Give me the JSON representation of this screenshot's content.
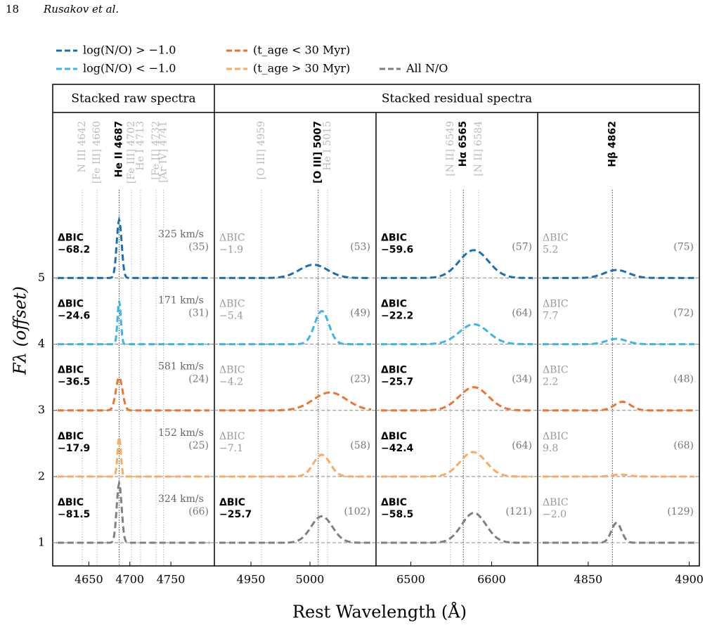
{
  "header": {
    "page_number": "18",
    "authors": "Rusakov et al."
  },
  "chart_data": {
    "type": "spectra-grid",
    "series": [
      {
        "name": "log(N/O) > −1.0",
        "color": "#1a6fb5"
      },
      {
        "name": "log(N/O) < −1.0",
        "color": "#3cb5ea"
      },
      {
        "name": "(t_age < 30 Myr)",
        "color": "#ec7534"
      },
      {
        "name": "(t_age > 30 Myr)",
        "color": "#fbaa5f"
      },
      {
        "name": "All N/O",
        "color": "#808080"
      }
    ],
    "group_titles": [
      "Stacked raw spectra",
      "Stacked residual spectra"
    ],
    "ylabel": "Fλ (offset)",
    "xlabel": "Rest Wavelength (Å)",
    "bic_label": "ΔBIC",
    "ylim": [
      0.65,
      7.5
    ],
    "yticks": [
      1,
      2,
      3,
      4,
      5
    ],
    "panels": [
      {
        "xlim": [
          4606,
          4803
        ],
        "xticks": [
          4650,
          4700,
          4750
        ],
        "lines": [
          {
            "label": "N III 4642",
            "wavelength": 4642,
            "highlight": false
          },
          {
            "label": "[Fe III] 4660",
            "wavelength": 4660,
            "highlight": false
          },
          {
            "label": "He II 4687",
            "wavelength": 4687,
            "highlight": true
          },
          {
            "label": "[Fe III] 4702",
            "wavelength": 4702,
            "highlight": false
          },
          {
            "label": "He I 4713",
            "wavelength": 4713,
            "highlight": false
          },
          {
            "label": "[Fe II] 4732",
            "wavelength": 4732,
            "highlight": false
          },
          {
            "label": "[Ar IV] 4741",
            "wavelength": 4741,
            "highlight": false
          }
        ],
        "fits": [
          {
            "offset": 5,
            "amplitude": 0.88,
            "center": 4687,
            "sigma": 3,
            "bic": {
              "value": -68.2,
              "label": "−68.2"
            },
            "significant": true,
            "n": {
              "value": 35,
              "label": "(35)"
            },
            "fwhm": {
              "value": 325,
              "label": "325 km/s"
            }
          },
          {
            "offset": 4,
            "amplitude": 0.65,
            "center": 4687,
            "sigma": 2,
            "bic": {
              "value": -24.6,
              "label": "−24.6"
            },
            "significant": true,
            "n": {
              "value": 31,
              "label": "(31)"
            },
            "fwhm": {
              "value": 171,
              "label": "171 km/s"
            }
          },
          {
            "offset": 3,
            "amplitude": 0.5,
            "center": 4687,
            "sigma": 4,
            "bic": {
              "value": -36.5,
              "label": "−36.5"
            },
            "significant": true,
            "n": {
              "value": 24,
              "label": "(24)"
            },
            "fwhm": {
              "value": 581,
              "label": "581 km/s"
            }
          },
          {
            "offset": 2,
            "amplitude": 0.6,
            "center": 4687,
            "sigma": 2,
            "bic": {
              "value": -17.9,
              "label": "−17.9"
            },
            "significant": true,
            "n": {
              "value": 25,
              "label": "(25)"
            },
            "fwhm": {
              "value": 152,
              "label": "152 km/s"
            }
          },
          {
            "offset": 1,
            "amplitude": 0.9,
            "center": 4687,
            "sigma": 3,
            "bic": {
              "value": -81.5,
              "label": "−81.5"
            },
            "significant": true,
            "n": {
              "value": 66,
              "label": "(66)"
            },
            "fwhm": {
              "value": 324,
              "label": "324 km/s"
            }
          }
        ]
      },
      {
        "xlim": [
          4919,
          5056
        ],
        "xticks": [
          4950,
          5000
        ],
        "lines": [
          {
            "label": "[O III] 4959",
            "wavelength": 4959,
            "highlight": false
          },
          {
            "label": "[O III] 5007",
            "wavelength": 5007,
            "highlight": true
          },
          {
            "label": "He I 5015",
            "wavelength": 5015,
            "highlight": false
          }
        ],
        "fits": [
          {
            "offset": 5,
            "amplitude": 0.2,
            "center": 5003,
            "sigma": 12,
            "bic": {
              "value": -1.9,
              "label": "−1.9"
            },
            "significant": false,
            "n": {
              "value": 53,
              "label": "(53)"
            }
          },
          {
            "offset": 4,
            "amplitude": 0.5,
            "center": 5010,
            "sigma": 6,
            "bic": {
              "value": -5.4,
              "label": "−5.4"
            },
            "significant": false,
            "n": {
              "value": 49,
              "label": "(49)"
            }
          },
          {
            "offset": 3,
            "amplitude": 0.27,
            "center": 5017,
            "sigma": 14,
            "bic": {
              "value": -4.2,
              "label": "−4.2"
            },
            "significant": false,
            "n": {
              "value": 23,
              "label": "(23)"
            }
          },
          {
            "offset": 2,
            "amplitude": 0.33,
            "center": 5010,
            "sigma": 7,
            "bic": {
              "value": -7.1,
              "label": "−7.1"
            },
            "significant": false,
            "n": {
              "value": 58,
              "label": "(58)"
            }
          },
          {
            "offset": 1,
            "amplitude": 0.4,
            "center": 5010,
            "sigma": 9,
            "bic": {
              "value": -25.7,
              "label": "−25.7"
            },
            "significant": true,
            "n": {
              "value": 102,
              "label": "(102)"
            }
          }
        ]
      },
      {
        "xlim": [
          6457,
          6657
        ],
        "xticks": [
          6500,
          6600
        ],
        "lines": [
          {
            "label": "[N II] 6549",
            "wavelength": 6549,
            "highlight": false
          },
          {
            "label": "Hα 6565",
            "wavelength": 6565,
            "highlight": true
          },
          {
            "label": "[N II] 6584",
            "wavelength": 6584,
            "highlight": false
          }
        ],
        "fits": [
          {
            "offset": 5,
            "amplitude": 0.42,
            "center": 6578,
            "sigma": 18,
            "bic": {
              "value": -59.6,
              "label": "−59.6"
            },
            "significant": true,
            "n": {
              "value": 57,
              "label": "(57)"
            }
          },
          {
            "offset": 4,
            "amplitude": 0.3,
            "center": 6578,
            "sigma": 18,
            "bic": {
              "value": -22.2,
              "label": "−22.2"
            },
            "significant": true,
            "n": {
              "value": 64,
              "label": "(64)"
            }
          },
          {
            "offset": 3,
            "amplitude": 0.35,
            "center": 6578,
            "sigma": 18,
            "bic": {
              "value": -25.7,
              "label": "−25.7"
            },
            "significant": true,
            "n": {
              "value": 34,
              "label": "(34)"
            }
          },
          {
            "offset": 2,
            "amplitude": 0.37,
            "center": 6577,
            "sigma": 16,
            "bic": {
              "value": -42.4,
              "label": "−42.4"
            },
            "significant": true,
            "n": {
              "value": 64,
              "label": "(64)"
            }
          },
          {
            "offset": 1,
            "amplitude": 0.45,
            "center": 6578,
            "sigma": 15,
            "bic": {
              "value": -58.5,
              "label": "−58.5"
            },
            "significant": true,
            "n": {
              "value": 121,
              "label": "(121)"
            }
          }
        ]
      },
      {
        "xlim": [
          4825,
          4905
        ],
        "xticks": [
          4850,
          4900
        ],
        "lines": [
          {
            "label": "Hβ 4862",
            "wavelength": 4862,
            "highlight": true
          }
        ],
        "fits": [
          {
            "offset": 5,
            "amplitude": 0.12,
            "center": 4864,
            "sigma": 6,
            "bic": {
              "value": 5.2,
              "label": "5.2"
            },
            "significant": false,
            "n": {
              "value": 75,
              "label": "(75)"
            }
          },
          {
            "offset": 4,
            "amplitude": 0.08,
            "center": 4864,
            "sigma": 5,
            "bic": {
              "value": 7.7,
              "label": "7.7"
            },
            "significant": false,
            "n": {
              "value": 72,
              "label": "(72)"
            }
          },
          {
            "offset": 3,
            "amplitude": 0.13,
            "center": 4867,
            "sigma": 4,
            "bic": {
              "value": 2.2,
              "label": "2.2"
            },
            "significant": false,
            "n": {
              "value": 48,
              "label": "(48)"
            }
          },
          {
            "offset": 2,
            "amplitude": 0.03,
            "center": 4866,
            "sigma": 4,
            "bic": {
              "value": 9.8,
              "label": "9.8"
            },
            "significant": false,
            "n": {
              "value": 68,
              "label": "(68)"
            }
          },
          {
            "offset": 1,
            "amplitude": 0.3,
            "center": 4864,
            "sigma": 2.5,
            "bic": {
              "value": -2.0,
              "label": "−2.0"
            },
            "significant": false,
            "n": {
              "value": 129,
              "label": "(129)"
            }
          }
        ]
      }
    ]
  }
}
